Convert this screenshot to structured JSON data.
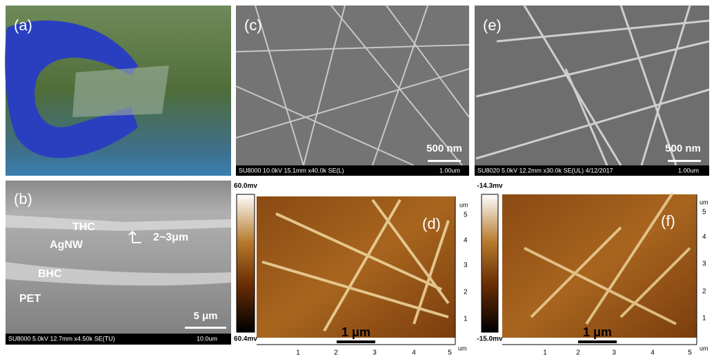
{
  "panel_a": {
    "label": "(a)"
  },
  "panel_b": {
    "label": "(b)",
    "annotations": [
      "THC",
      "AgNW",
      "BHC",
      "PET"
    ],
    "thickness": "2~3μm",
    "scale_bar": "5 μm",
    "info": "SU8000 5.0kV 12.7mm x4.50k SE(TU)",
    "info_scale": "10.0um"
  },
  "panel_c": {
    "label": "(c)",
    "scale_bar": "500 nm",
    "info": "SU8000 10.0kV 15.1mm x40.0k SE(L)",
    "info_scale": "1.00um"
  },
  "panel_e": {
    "label": "(e)",
    "scale_bar": "500 nm",
    "info": "SU8020 5.0kV 12.2mm x30.0k SE(UL) 4/12/2017",
    "info_scale": "1.00um"
  },
  "panel_d": {
    "label": "(d)",
    "colorbar_max": "60.0mv",
    "colorbar_min": "60.4mv",
    "scale_bar": "1 μm",
    "x_ticks": [
      "1",
      "2",
      "3",
      "4",
      "5"
    ],
    "y_ticks": [
      "5",
      "4",
      "3",
      "2",
      "1"
    ],
    "unit": "um"
  },
  "panel_f": {
    "label": "(f)",
    "colorbar_max": "-14.3mv",
    "colorbar_min": "-15.0mv",
    "scale_bar": "1 μm",
    "x_ticks": [
      "1",
      "2",
      "3",
      "4",
      "5"
    ],
    "y_ticks": [
      "5",
      "4",
      "3",
      "2",
      "1"
    ],
    "unit": "um"
  }
}
